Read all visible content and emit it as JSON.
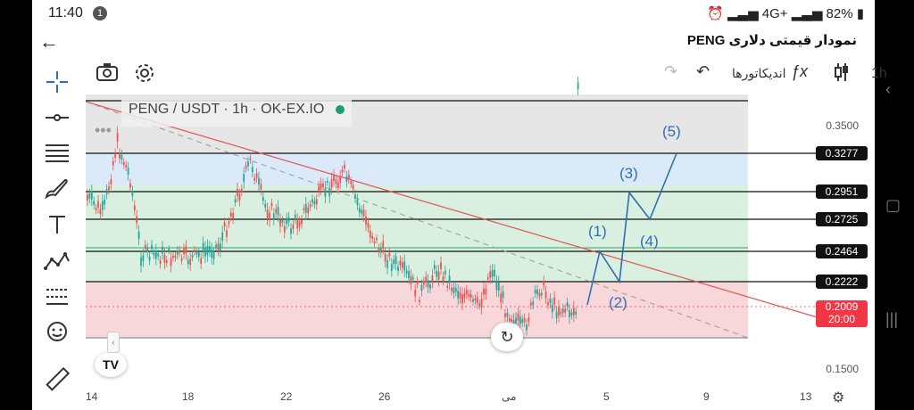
{
  "status": {
    "time": "11:40",
    "notif_count": "1",
    "network": "4G+",
    "battery": "82%"
  },
  "header": {
    "title": "نمودار قیمتی دلاری PENG"
  },
  "toolbar": {
    "interval": "1h",
    "indicators_label": "اندیکاتورها"
  },
  "legend": {
    "symbol": "PENG / USDT · 1h · OK-EX.IO"
  },
  "y_axis": {
    "ticks": [
      "0.3500",
      "0.1500"
    ]
  },
  "price_levels": [
    {
      "label": "0.3277"
    },
    {
      "label": "0.2951"
    },
    {
      "label": "0.2725"
    },
    {
      "label": "0.2464"
    },
    {
      "label": "0.2222"
    }
  ],
  "current_price": {
    "value": "0.2009",
    "countdown": "20:00",
    "color": "#f23645"
  },
  "x_axis": {
    "ticks": [
      "14",
      "18",
      "22",
      "26",
      "می",
      "5",
      "9",
      "13"
    ]
  },
  "wave_labels": [
    "(1)",
    "(2)",
    "(3)",
    "(4)",
    "(5)"
  ],
  "colors": {
    "red_zone": "#f8d7da",
    "green_zone": "#d9efe0",
    "blue_zone": "#dbeaf8",
    "gray_zone": "#e6e6e6",
    "trend_line": "#e05555",
    "wave": "#2f6fb3"
  },
  "icons": {
    "crosshair": "crosshair-icon",
    "trend": "trendline-icon",
    "fib": "fib-icon",
    "brush": "brush-icon",
    "text": "text-icon",
    "pattern": "pattern-icon",
    "ruler-tool": "measure-icon",
    "emoji": "emoji-icon",
    "ruler": "ruler-icon"
  }
}
